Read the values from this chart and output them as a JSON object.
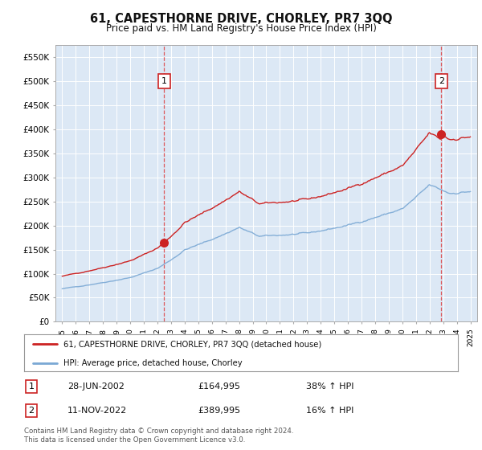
{
  "title": "61, CAPESTHORNE DRIVE, CHORLEY, PR7 3QQ",
  "subtitle": "Price paid vs. HM Land Registry's House Price Index (HPI)",
  "ylim": [
    0,
    575000
  ],
  "yticks": [
    0,
    50000,
    100000,
    150000,
    200000,
    250000,
    300000,
    350000,
    400000,
    450000,
    500000,
    550000
  ],
  "ytick_labels": [
    "£0",
    "£50K",
    "£100K",
    "£150K",
    "£200K",
    "£250K",
    "£300K",
    "£350K",
    "£400K",
    "£450K",
    "£500K",
    "£550K"
  ],
  "sale1_date_num": 2002.49,
  "sale1_price": 164995,
  "sale2_date_num": 2022.86,
  "sale2_price": 389995,
  "hpi_color": "#7aa8d4",
  "price_color": "#cc2222",
  "background_color": "#dce8f5",
  "legend_line1": "61, CAPESTHORNE DRIVE, CHORLEY, PR7 3QQ (detached house)",
  "legend_line2": "HPI: Average price, detached house, Chorley",
  "annotation1_label": "1",
  "annotation1_date": "28-JUN-2002",
  "annotation1_price": "£164,995",
  "annotation1_hpi": "38% ↑ HPI",
  "annotation2_label": "2",
  "annotation2_date": "11-NOV-2022",
  "annotation2_price": "£389,995",
  "annotation2_hpi": "16% ↑ HPI",
  "footer": "Contains HM Land Registry data © Crown copyright and database right 2024.\nThis data is licensed under the Open Government Licence v3.0."
}
